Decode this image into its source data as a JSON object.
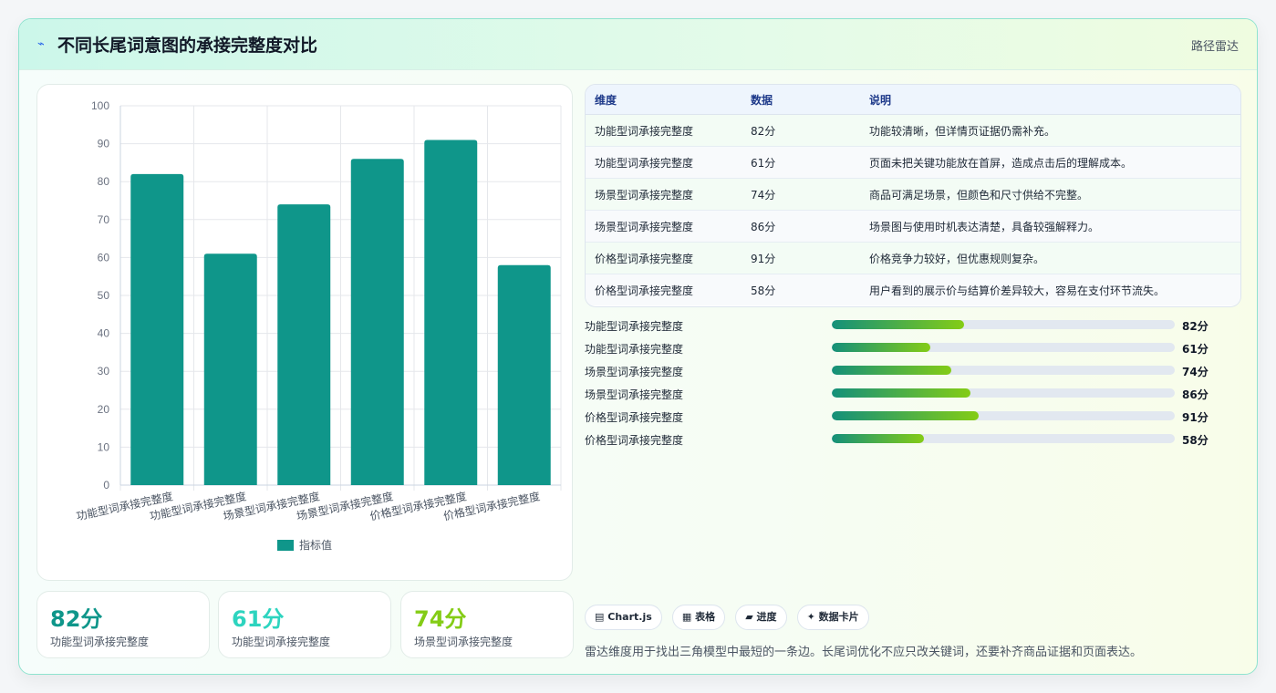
{
  "header": {
    "icon": "⌁",
    "icon_name": "pulse-icon",
    "title": "不同长尾词意图的承接完整度对比",
    "tag": "路径雷达"
  },
  "chart_data": {
    "type": "bar",
    "categories": [
      "功能型词承接完整度",
      "功能型词承接完整度",
      "场景型词承接完整度",
      "场景型词承接完整度",
      "价格型词承接完整度",
      "价格型词承接完整度"
    ],
    "series": [
      {
        "name": "指标值",
        "values": [
          82,
          61,
          74,
          86,
          91,
          58
        ],
        "color": "#0f968a"
      }
    ],
    "ylim": [
      0,
      100
    ],
    "yticks": [
      0,
      10,
      20,
      30,
      40,
      50,
      60,
      70,
      80,
      90,
      100
    ],
    "grid": true,
    "legend_position": "bottom"
  },
  "kpis": [
    {
      "value": "82分",
      "label": "功能型词承接完整度",
      "color": "#0f968a"
    },
    {
      "value": "61分",
      "label": "功能型词承接完整度",
      "color": "#2dd4bf"
    },
    {
      "value": "74分",
      "label": "场景型词承接完整度",
      "color": "#84cc16"
    }
  ],
  "table": {
    "headers": [
      "维度",
      "数据",
      "说明"
    ],
    "rows": [
      [
        "功能型词承接完整度",
        "82分",
        "功能较清晰，但详情页证据仍需补充。"
      ],
      [
        "功能型词承接完整度",
        "61分",
        "页面未把关键功能放在首屏，造成点击后的理解成本。"
      ],
      [
        "场景型词承接完整度",
        "74分",
        "商品可满足场景，但颜色和尺寸供给不完整。"
      ],
      [
        "场景型词承接完整度",
        "86分",
        "场景图与使用时机表达清楚，具备较强解释力。"
      ],
      [
        "价格型词承接完整度",
        "91分",
        "价格竞争力较好，但优惠规则复杂。"
      ],
      [
        "价格型词承接完整度",
        "58分",
        "用户看到的展示价与结算价差异较大，容易在支付环节流失。"
      ]
    ]
  },
  "progress": [
    {
      "label": "功能型词承接完整度",
      "value": "82分",
      "fraction": 0.385
    },
    {
      "label": "功能型词承接完整度",
      "value": "61分",
      "fraction": 0.287
    },
    {
      "label": "场景型词承接完整度",
      "value": "74分",
      "fraction": 0.348
    },
    {
      "label": "场景型词承接完整度",
      "value": "86分",
      "fraction": 0.404
    },
    {
      "label": "价格型词承接完整度",
      "value": "91分",
      "fraction": 0.428
    },
    {
      "label": "价格型词承接完整度",
      "value": "58分",
      "fraction": 0.268
    }
  ],
  "chips": [
    {
      "icon": "▤",
      "text": "Chart.js"
    },
    {
      "icon": "▦",
      "text": "表格"
    },
    {
      "icon": "▰",
      "text": "进度"
    },
    {
      "icon": "✦",
      "text": "数据卡片"
    }
  ],
  "footnote": "雷达维度用于找出三角模型中最短的一条边。长尾词优化不应只改关键词，还要补齐商品证据和页面表达。"
}
